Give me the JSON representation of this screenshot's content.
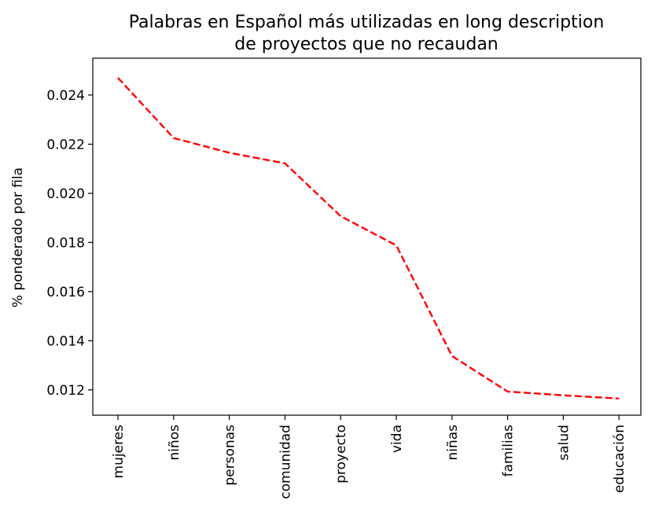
{
  "chart_data": {
    "type": "line",
    "title_lines": [
      "Palabras en Español más utilizadas en long description",
      "de proyectos que no recaudan"
    ],
    "xlabel": "",
    "ylabel": "% ponderado por fila",
    "categories": [
      "mujeres",
      "niños",
      "personas",
      "comunidad",
      "proyecto",
      "vida",
      "niñas",
      "familias",
      "salud",
      "educación"
    ],
    "series": [
      {
        "values": [
          0.0247,
          0.02225,
          0.02165,
          0.02122,
          0.01907,
          0.01788,
          0.01338,
          0.01193,
          0.01178,
          0.01165
        ],
        "color": "#ff0000",
        "line_style": "dashed"
      }
    ],
    "ylim": [
      0.01097,
      0.0255
    ],
    "yticks": [
      0.012,
      0.014,
      0.016,
      0.018,
      0.02,
      0.022,
      0.024
    ],
    "ytick_labels": [
      "0.012",
      "0.014",
      "0.016",
      "0.018",
      "0.020",
      "0.022",
      "0.024"
    ],
    "grid": false,
    "legend": "none"
  }
}
